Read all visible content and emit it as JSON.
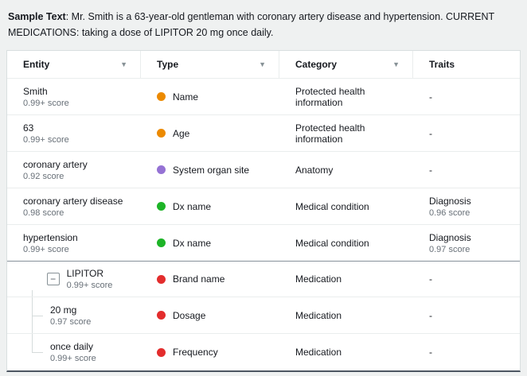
{
  "sample_text": {
    "label": "Sample Text",
    "body": ": Mr. Smith is a 63-year-old gentleman with coronary artery disease and hypertension. CURRENT MEDICATIONS: taking a dose of LIPITOR 20 mg once daily."
  },
  "table": {
    "headers": {
      "entity": "Entity",
      "type": "Type",
      "category": "Category",
      "traits": "Traits"
    },
    "filter_icon": "▼",
    "expander_collapse_glyph": "−",
    "rows": [
      {
        "entity": "Smith",
        "entity_score": "0.99+ score",
        "type": "Name",
        "type_color": "#ec8a00",
        "category": "Protected health information",
        "trait": "-",
        "trait_score": ""
      },
      {
        "entity": "63",
        "entity_score": "0.99+ score",
        "type": "Age",
        "type_color": "#ec8a00",
        "category": "Protected health information",
        "trait": "-",
        "trait_score": ""
      },
      {
        "entity": "coronary artery",
        "entity_score": "0.92 score",
        "type": "System organ site",
        "type_color": "#9572d4",
        "category": "Anatomy",
        "trait": "-",
        "trait_score": ""
      },
      {
        "entity": "coronary artery disease",
        "entity_score": "0.98 score",
        "type": "Dx name",
        "type_color": "#1db427",
        "category": "Medical condition",
        "trait": "Diagnosis",
        "trait_score": "0.96 score"
      },
      {
        "entity": "hypertension",
        "entity_score": "0.99+ score",
        "type": "Dx name",
        "type_color": "#1db427",
        "category": "Medical condition",
        "trait": "Diagnosis",
        "trait_score": "0.97 score"
      },
      {
        "entity": "LIPITOR",
        "entity_score": "0.99+ score",
        "type": "Brand name",
        "type_color": "#e32d2d",
        "category": "Medication",
        "trait": "-",
        "trait_score": ""
      },
      {
        "entity": "20 mg",
        "entity_score": "0.97 score",
        "type": "Dosage",
        "type_color": "#e32d2d",
        "category": "Medication",
        "trait": "-",
        "trait_score": ""
      },
      {
        "entity": "once daily",
        "entity_score": "0.99+ score",
        "type": "Frequency",
        "type_color": "#e32d2d",
        "category": "Medication",
        "trait": "-",
        "trait_score": ""
      }
    ]
  }
}
